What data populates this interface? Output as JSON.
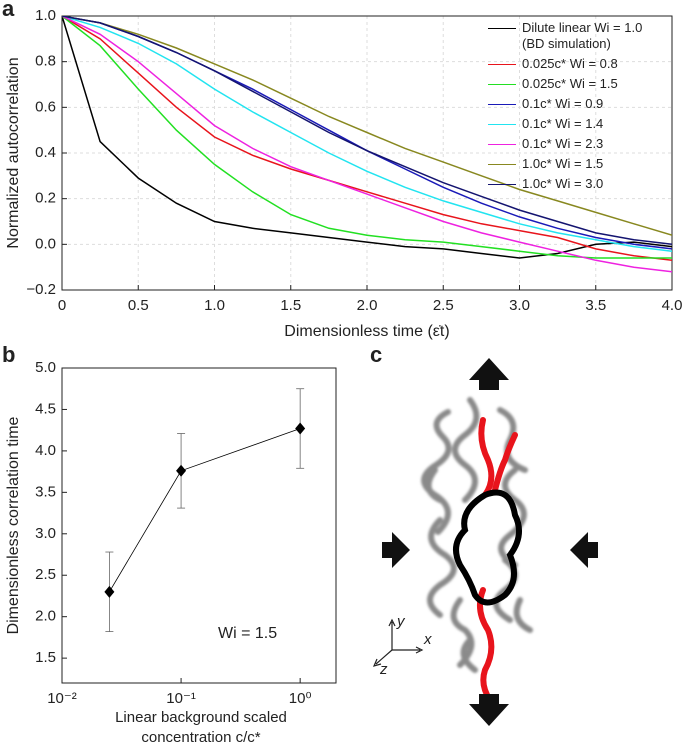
{
  "chart_data": [
    {
      "type": "line",
      "panel_label": "a",
      "x_label": "Dimensionless time (ε̇t)",
      "y_label": "Normalized autocorrelation",
      "x": [
        0,
        0.25,
        0.5,
        0.75,
        1.0,
        1.25,
        1.5,
        1.75,
        2.0,
        2.25,
        2.5,
        2.75,
        3.0,
        3.25,
        3.5,
        3.75,
        4.0
      ],
      "series": [
        {
          "name": "Dilute linear Wi = 1.0 (BD simulation)",
          "color": "#000000",
          "values": [
            1.0,
            0.45,
            0.29,
            0.18,
            0.1,
            0.07,
            0.05,
            0.03,
            0.01,
            -0.01,
            -0.02,
            -0.04,
            -0.06,
            -0.04,
            0.0,
            0.01,
            -0.01
          ]
        },
        {
          "name": "0.025c* Wi = 0.8",
          "color": "#e8141c",
          "values": [
            1.0,
            0.9,
            0.75,
            0.6,
            0.47,
            0.39,
            0.33,
            0.28,
            0.23,
            0.18,
            0.13,
            0.09,
            0.06,
            0.03,
            -0.02,
            -0.05,
            -0.07
          ]
        },
        {
          "name": "0.025c* Wi = 1.5",
          "color": "#22e022",
          "values": [
            1.0,
            0.87,
            0.68,
            0.5,
            0.35,
            0.23,
            0.13,
            0.07,
            0.04,
            0.02,
            0.01,
            -0.01,
            -0.03,
            -0.05,
            -0.06,
            -0.06,
            -0.06
          ]
        },
        {
          "name": "0.1c* Wi = 0.9",
          "color": "#1a1ab8",
          "values": [
            1.0,
            0.97,
            0.91,
            0.84,
            0.76,
            0.68,
            0.59,
            0.5,
            0.41,
            0.33,
            0.25,
            0.18,
            0.12,
            0.07,
            0.03,
            0.0,
            -0.02
          ]
        },
        {
          "name": "0.1c* Wi = 1.4",
          "color": "#22e4f0",
          "values": [
            1.0,
            0.95,
            0.88,
            0.79,
            0.68,
            0.58,
            0.49,
            0.4,
            0.32,
            0.25,
            0.19,
            0.14,
            0.09,
            0.05,
            0.02,
            -0.01,
            -0.03
          ]
        },
        {
          "name": "0.1c* Wi = 2.3",
          "color": "#ee22e0",
          "values": [
            1.0,
            0.92,
            0.8,
            0.66,
            0.52,
            0.42,
            0.34,
            0.28,
            0.22,
            0.16,
            0.1,
            0.05,
            0.01,
            -0.03,
            -0.07,
            -0.1,
            -0.12
          ]
        },
        {
          "name": "1.0c* Wi = 1.5",
          "color": "#888820",
          "values": [
            1.0,
            0.97,
            0.92,
            0.86,
            0.79,
            0.72,
            0.64,
            0.56,
            0.49,
            0.42,
            0.36,
            0.3,
            0.24,
            0.19,
            0.14,
            0.09,
            0.04
          ]
        },
        {
          "name": "1.0c* Wi = 3.0",
          "color": "#141470",
          "values": [
            1.0,
            0.97,
            0.91,
            0.84,
            0.76,
            0.67,
            0.58,
            0.49,
            0.41,
            0.34,
            0.27,
            0.21,
            0.15,
            0.1,
            0.05,
            0.02,
            0.0
          ]
        }
      ],
      "xlim": [
        0,
        4.0
      ],
      "ylim": [
        -0.2,
        1.0
      ],
      "xticks": [
        0,
        0.5,
        {
          "value": 1,
          "label": "1.0"
        },
        1.5,
        {
          "value": 2,
          "label": "2.0"
        },
        2.5,
        {
          "value": 3,
          "label": "3.0"
        },
        3.5,
        {
          "value": 4,
          "label": "4.0"
        }
      ],
      "yticks": [
        {
          "value": -0.2,
          "label": "−0.2"
        },
        {
          "value": 0,
          "label": "0.0"
        },
        0.2,
        0.4,
        0.6,
        0.8,
        {
          "value": 1,
          "label": "1.0"
        }
      ],
      "grid": true,
      "legend": "upper right"
    },
    {
      "type": "errorbar",
      "panel_label": "b",
      "x_label": "Linear background scaled concentration c/c*",
      "y_label": "Dimensionless correlation time",
      "annotation": "Wi = 1.5",
      "x": [
        0.025,
        0.1,
        1.0
      ],
      "values": [
        2.3,
        3.76,
        4.27
      ],
      "errors": [
        0.48,
        0.45,
        0.48
      ],
      "color": "#000000",
      "xlim": [
        0.01,
        2
      ],
      "ylim": [
        1.2,
        5.0
      ],
      "x_scale": "log",
      "xticks": [
        {
          "value": 0.01,
          "label": "10⁻²"
        },
        {
          "value": 0.1,
          "label": "10⁻¹"
        },
        {
          "value": 1,
          "label": "10⁰"
        }
      ],
      "yticks": [
        1.5,
        {
          "value": 2,
          "label": "2.0"
        },
        2.5,
        {
          "value": 3,
          "label": "3.0"
        },
        3.5,
        {
          "value": 4,
          "label": "4.0"
        },
        4.5,
        {
          "value": 5,
          "label": "5.0"
        }
      ],
      "grid": false
    }
  ],
  "diagram": {
    "panel_label": "c",
    "axes": [
      "y",
      "x",
      "z"
    ]
  }
}
